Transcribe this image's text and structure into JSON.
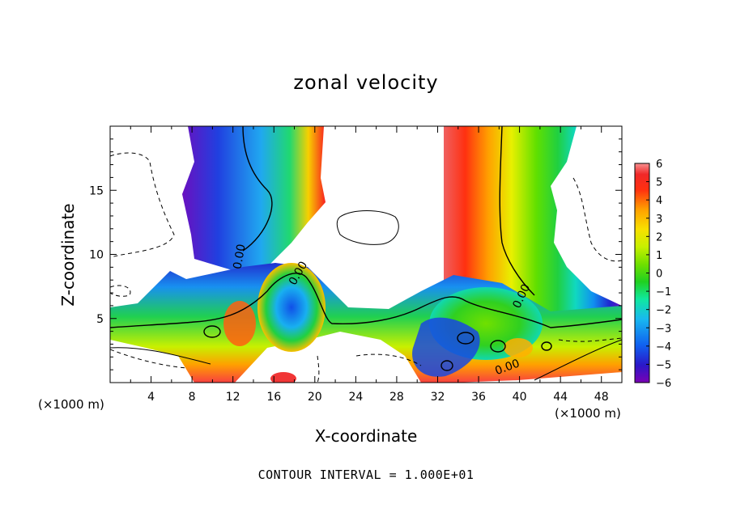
{
  "chart_data": {
    "type": "heatmap",
    "title": "zonal velocity",
    "xlabel": "X-coordinate",
    "ylabel": "Z-coordinate",
    "x_multiplier_label": "(×1000 m)",
    "footer": "CONTOUR INTERVAL = 1.000E+01",
    "contour_label": "0.00",
    "xlim": [
      0,
      50
    ],
    "ylim": [
      0,
      20
    ],
    "x_ticks": [
      4,
      8,
      12,
      16,
      20,
      24,
      28,
      32,
      36,
      40,
      44,
      48
    ],
    "x_tick_labels": [
      "4",
      "8",
      "12",
      "16",
      "20",
      "24",
      "28",
      "32",
      "36",
      "40",
      "44",
      "48"
    ],
    "y_ticks": [
      5,
      10,
      15
    ],
    "y_tick_labels": [
      "5",
      "10",
      "15"
    ],
    "colorbar": {
      "min": -6,
      "max": 6,
      "ticks": [
        6,
        5,
        4,
        3,
        2,
        1,
        0,
        -1,
        -2,
        -3,
        -4,
        -5,
        -6
      ],
      "tick_labels": [
        "6",
        "5",
        "4",
        "3",
        "2",
        "1",
        "0",
        "−1",
        "−2",
        "−3",
        "−4",
        "−5",
        "−6"
      ],
      "colors": [
        "#7a00b4",
        "#2a18c8",
        "#1060f0",
        "#18b8f0",
        "#10e8a0",
        "#20d020",
        "#70e000",
        "#c8f000",
        "#f8e000",
        "#ffa000",
        "#ff3010",
        "#f02828",
        "#f89090"
      ]
    }
  }
}
